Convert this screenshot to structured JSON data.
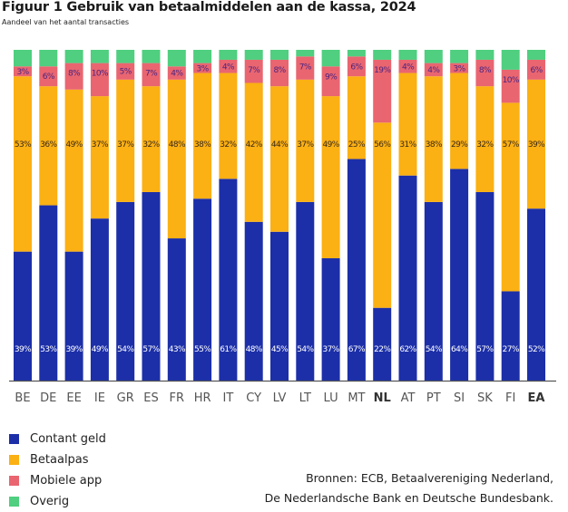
{
  "title": "Figuur 1  Gebruik van betaalmiddelen aan de kassa, 2024",
  "subtitle": "Aandeel van het aantal transacties",
  "colors": {
    "Contant geld": "#1c2fa8",
    "Betaalpas": "#fbb013",
    "Mobiele app": "#e96570",
    "Overig": "#4fcf7f",
    "label_light": "#ffffff",
    "label_dark": "#4a2580",
    "axis": "#555555"
  },
  "chart_data": {
    "type": "bar",
    "stacked": true,
    "normalized": true,
    "title": "Figuur 1  Gebruik van betaalmiddelen aan de kassa, 2024",
    "subtitle": "Aandeel van het aantal transacties",
    "xlabel": "",
    "ylabel": "",
    "ylim": [
      0,
      100
    ],
    "unit": "%",
    "grid": false,
    "legend_position": "bottom-left",
    "categories": [
      "BE",
      "DE",
      "EE",
      "IE",
      "GR",
      "ES",
      "FR",
      "HR",
      "IT",
      "CY",
      "LV",
      "LT",
      "LU",
      "MT",
      "NL",
      "AT",
      "PT",
      "SI",
      "SK",
      "FI",
      "EA"
    ],
    "bold_categories": [
      "NL",
      "EA"
    ],
    "series": [
      {
        "name": "Contant geld",
        "values": [
          39,
          53,
          39,
          49,
          54,
          57,
          43,
          55,
          61,
          48,
          45,
          54,
          37,
          67,
          22,
          62,
          54,
          64,
          57,
          27,
          52
        ]
      },
      {
        "name": "Betaalpas",
        "values": [
          53,
          36,
          49,
          37,
          37,
          32,
          48,
          38,
          32,
          42,
          44,
          37,
          49,
          25,
          56,
          31,
          38,
          29,
          32,
          57,
          39
        ]
      },
      {
        "name": "Mobiele app",
        "values": [
          3,
          6,
          8,
          10,
          5,
          7,
          4,
          3,
          4,
          7,
          8,
          7,
          9,
          6,
          19,
          4,
          4,
          3,
          8,
          10,
          6
        ]
      },
      {
        "name": "Overig",
        "values": [
          5,
          5,
          4,
          4,
          4,
          4,
          5,
          4,
          3,
          3,
          3,
          2,
          5,
          2,
          3,
          3,
          4,
          4,
          3,
          6,
          3
        ]
      }
    ],
    "labeled_series": [
      "Contant geld",
      "Betaalpas",
      "Mobiele app"
    ]
  },
  "legend": [
    {
      "label": "Contant geld"
    },
    {
      "label": "Betaalpas"
    },
    {
      "label": "Mobiele app"
    },
    {
      "label": "Overig"
    }
  ],
  "source": {
    "line1": "Bronnen: ECB, Betaalvereniging Nederland,",
    "line2": "De Nederlandsche Bank en Deutsche Bundesbank."
  }
}
